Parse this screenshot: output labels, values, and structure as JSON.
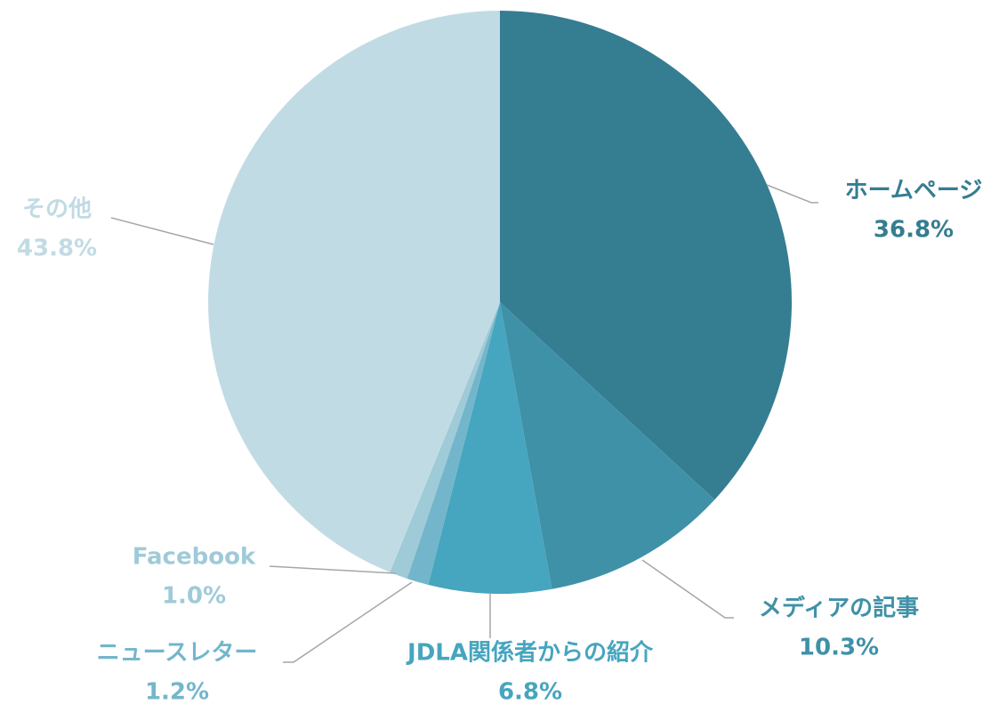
{
  "chart_data": {
    "type": "pie",
    "categories": [
      "ホームページ",
      "メディアの記事",
      "JDLA関係者からの紹介",
      "ニュースレター",
      "Facebook",
      "その他"
    ],
    "values": [
      36.8,
      10.3,
      6.8,
      1.2,
      1.0,
      43.8
    ],
    "value_labels": [
      "36.8%",
      "10.3%",
      "6.8%",
      "1.2%",
      "1.0%",
      "43.8%"
    ],
    "colors": [
      "#357d91",
      "#3f91a8",
      "#46a5bf",
      "#73b6cb",
      "#9fcad8",
      "#c1dbe4"
    ]
  }
}
